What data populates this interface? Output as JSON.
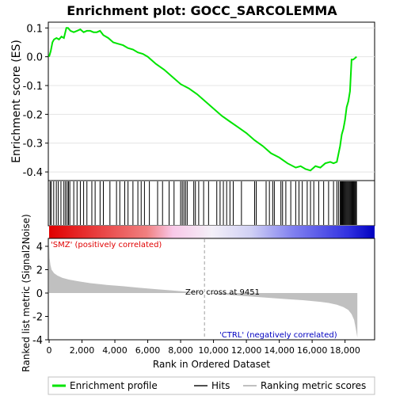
{
  "chart_data": [
    {
      "type": "line",
      "title": "Enrichment plot: GOCC_SARCOLEMMA",
      "ylabel": "Enrichment score (ES)",
      "ylim": [
        -0.43,
        0.12
      ],
      "xlim": [
        0,
        19800
      ],
      "yticks": [
        0.1,
        0.0,
        -0.1,
        -0.2,
        -0.3,
        -0.4
      ],
      "ytick_labels": [
        "0.1",
        "0.0",
        "-0.1",
        "-0.2",
        "-0.3",
        "-0.4"
      ],
      "grid": true,
      "series": [
        {
          "name": "Enrichment profile",
          "color": "#00e400",
          "x": [
            0,
            100,
            200,
            300,
            450,
            600,
            750,
            900,
            1050,
            1150,
            1300,
            1500,
            1700,
            1900,
            2100,
            2300,
            2500,
            2700,
            2900,
            3100,
            3300,
            3600,
            3900,
            4200,
            4500,
            4800,
            5100,
            5400,
            5700,
            6000,
            6500,
            7000,
            7500,
            8000,
            8500,
            9000,
            9500,
            10000,
            10500,
            11000,
            11500,
            12000,
            12500,
            13000,
            13500,
            14000,
            14500,
            15000,
            15300,
            15600,
            15900,
            16200,
            16500,
            16800,
            17100,
            17300,
            17500,
            17700,
            17800,
            17900,
            18000,
            18100,
            18200,
            18300,
            18400,
            18500,
            18600,
            18700
          ],
          "y": [
            0.0,
            0.02,
            0.05,
            0.06,
            0.065,
            0.06,
            0.07,
            0.065,
            0.1,
            0.1,
            0.09,
            0.085,
            0.09,
            0.095,
            0.085,
            0.09,
            0.09,
            0.085,
            0.085,
            0.09,
            0.075,
            0.065,
            0.05,
            0.045,
            0.04,
            0.03,
            0.025,
            0.015,
            0.01,
            0.0,
            -0.025,
            -0.045,
            -0.07,
            -0.095,
            -0.11,
            -0.13,
            -0.155,
            -0.18,
            -0.205,
            -0.225,
            -0.245,
            -0.265,
            -0.29,
            -0.31,
            -0.335,
            -0.35,
            -0.37,
            -0.385,
            -0.38,
            -0.39,
            -0.395,
            -0.38,
            -0.385,
            -0.37,
            -0.365,
            -0.37,
            -0.365,
            -0.31,
            -0.27,
            -0.25,
            -0.22,
            -0.175,
            -0.155,
            -0.12,
            -0.01,
            -0.01,
            -0.005,
            0.0
          ]
        }
      ]
    },
    {
      "type": "hits",
      "legend_label": "Hits",
      "hit_positions": [
        60,
        130,
        280,
        440,
        560,
        720,
        900,
        1000,
        1100,
        1180,
        1260,
        1500,
        1700,
        1900,
        2100,
        2300,
        2600,
        2800,
        3100,
        3300,
        3700,
        4100,
        4300,
        4600,
        4800,
        5100,
        5400,
        5600,
        5800,
        6100,
        6600,
        6900,
        7300,
        7600,
        8000,
        8100,
        8200,
        8300,
        8400,
        8800,
        8900,
        9100,
        9400,
        9700,
        10200,
        10400,
        10600,
        10800,
        11000,
        11200,
        11700,
        12500,
        12600,
        13200,
        13400,
        13600,
        13700,
        14100,
        14200,
        14400,
        14700,
        15000,
        15200,
        15400,
        15700,
        15900,
        16100,
        16400,
        16700,
        17000,
        17300,
        17500,
        17600,
        17700,
        17750,
        17800,
        17850,
        17900,
        17950,
        18000,
        18050,
        18100,
        18150,
        18200,
        18250,
        18300,
        18350,
        18400,
        18450,
        18500,
        18550,
        18600,
        18650,
        18700
      ]
    },
    {
      "type": "area",
      "ylabel": "Ranked list metric (Signal2Noise)",
      "xlabel": "Rank in Ordered Dataset",
      "ylim": [
        -4,
        4
      ],
      "yticks": [
        4,
        2,
        0,
        -2,
        -4
      ],
      "ytick_labels": [
        "4",
        "2",
        "0",
        "-2",
        "-4"
      ],
      "xticks": [
        0,
        2000,
        4000,
        6000,
        8000,
        10000,
        12000,
        14000,
        16000,
        18000
      ],
      "xtick_labels": [
        "0",
        "2,000",
        "4,000",
        "6,000",
        "8,000",
        "10,000",
        "12,000",
        "14,000",
        "16,000",
        "18,000"
      ],
      "series": [
        {
          "name": "Ranking metric scores",
          "color": "#c0c0c0",
          "x": [
            0,
            30,
            80,
            150,
            300,
            500,
            800,
            1200,
            1800,
            2500,
            3500,
            4500,
            5500,
            6500,
            7500,
            8500,
            9451,
            10500,
            11500,
            12500,
            13500,
            14500,
            15500,
            16500,
            17000,
            17500,
            17900,
            18200,
            18400,
            18550,
            18650,
            18750
          ],
          "y": [
            4.3,
            3.0,
            2.4,
            2.0,
            1.7,
            1.5,
            1.3,
            1.15,
            1.0,
            0.85,
            0.7,
            0.58,
            0.45,
            0.33,
            0.22,
            0.1,
            0.0,
            -0.12,
            -0.22,
            -0.32,
            -0.42,
            -0.52,
            -0.62,
            -0.75,
            -0.85,
            -1.0,
            -1.2,
            -1.45,
            -1.8,
            -2.3,
            -3.0,
            -3.8
          ]
        }
      ],
      "annotations": [
        "Zero cross at 9451",
        "'SMZ' (positively correlated)",
        "'CTRL' (negatively correlated)"
      ],
      "zero_cross": 9451
    }
  ],
  "legend": {
    "items": [
      "Enrichment profile",
      "Hits",
      "Ranking metric scores"
    ],
    "colors": [
      "#00e400",
      "#000000",
      "#c0c0c0"
    ],
    "placement": "bottom"
  },
  "labels": {
    "title": "Enrichment plot: GOCC_SARCOLEMMA",
    "es_ylabel": "Enrichment score (ES)",
    "rank_ylabel": "Ranked list metric (Signal2Noise)",
    "xlabel": "Rank in Ordered Dataset",
    "zero_cross": "Zero cross at 9451",
    "pos_label": "'SMZ' (positively correlated)",
    "neg_label": "'CTRL' (negatively correlated)",
    "legend_es": "Enrichment profile",
    "legend_hits": "Hits",
    "legend_rank": "Ranking metric scores"
  }
}
